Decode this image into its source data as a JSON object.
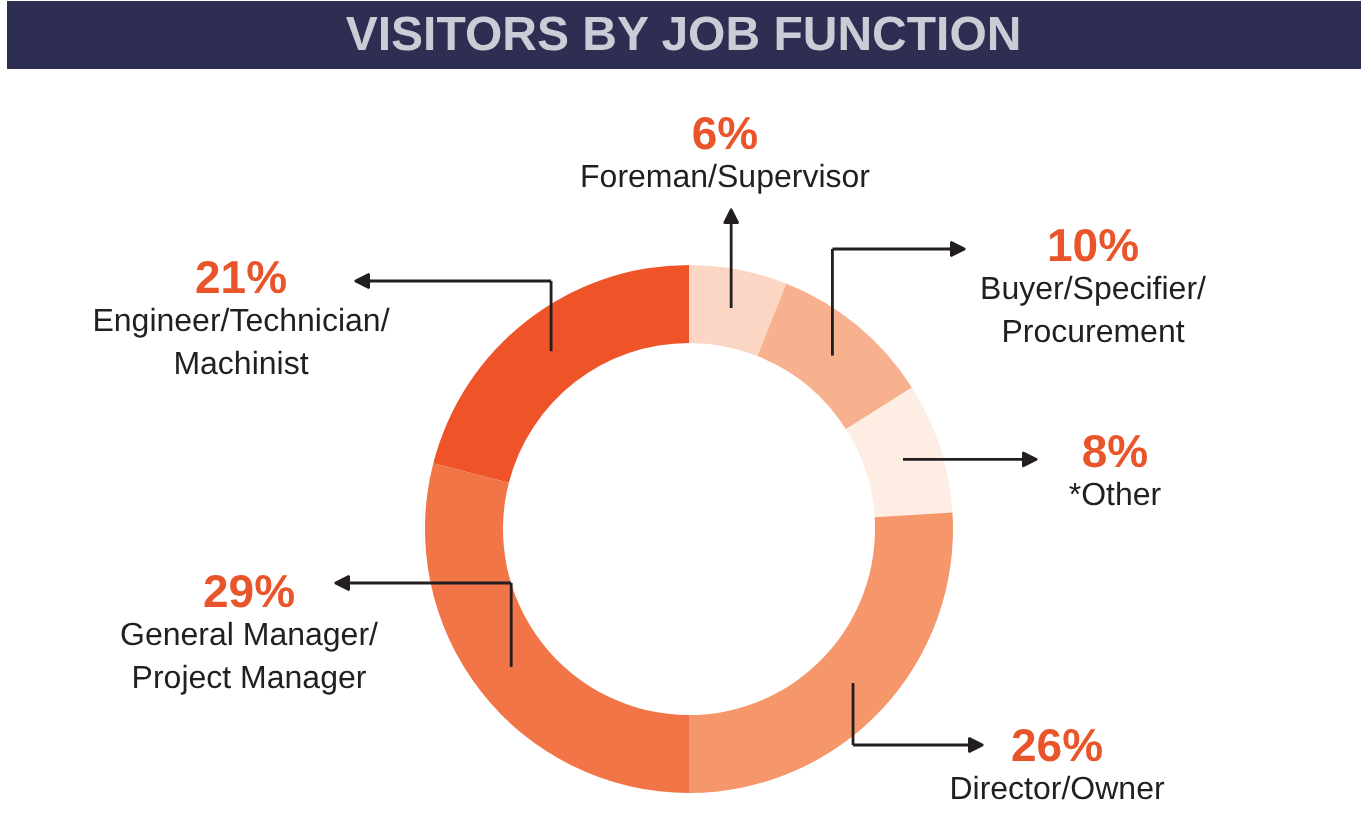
{
  "chart_data": {
    "type": "donut",
    "title": "VISITORS BY JOB FUNCTION",
    "categories": [
      "Foreman/Supervisor",
      "Buyer/Specifier/Procurement",
      "*Other",
      "Director/Owner",
      "General Manager/Project Manager",
      "Engineer/Technician/Machinist"
    ],
    "values": [
      6,
      10,
      8,
      26,
      29,
      21
    ],
    "colors": [
      "#fcd6c4",
      "#f8b18f",
      "#fdede3",
      "#f5966b",
      "#f27547",
      "#ee5428"
    ],
    "value_labels": [
      "6%",
      "10%",
      "8%",
      "26%",
      "29%",
      "21%"
    ]
  }
}
